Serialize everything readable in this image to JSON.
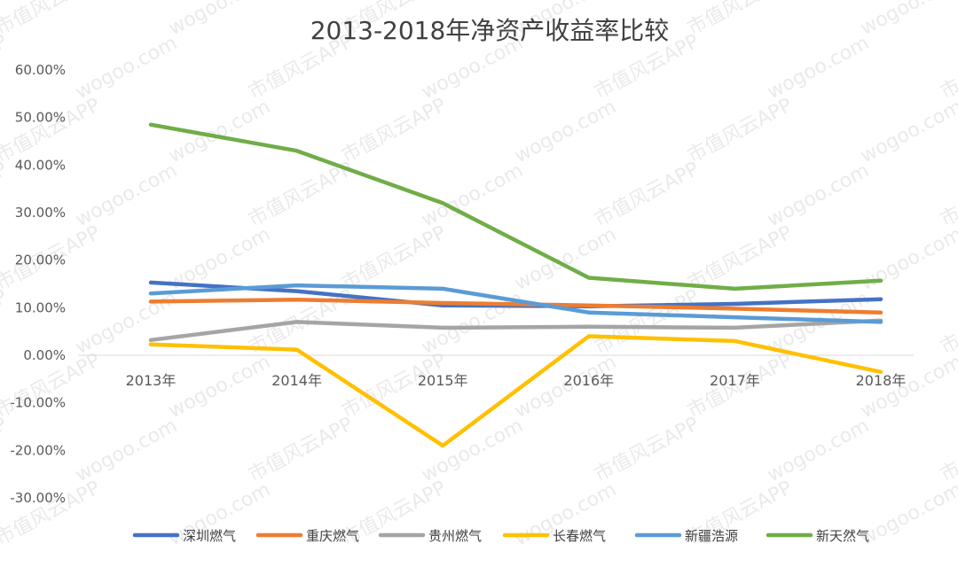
{
  "chart_data": {
    "type": "line",
    "title": "2013-2018年净资产收益率比较",
    "categories": [
      "2013年",
      "2014年",
      "2015年",
      "2016年",
      "2017年",
      "2018年"
    ],
    "ylim": [
      -30,
      60
    ],
    "yticks": [
      "60.00%",
      "50.00%",
      "40.00%",
      "30.00%",
      "20.00%",
      "10.00%",
      "0.00%",
      "-10.00%",
      "-20.00%",
      "-30.00%"
    ],
    "y_unit": "%",
    "grid": false,
    "legend_position": "bottom",
    "series": [
      {
        "name": "深圳燃气",
        "color": "#4472C4",
        "values": [
          15.3,
          13.5,
          10.5,
          10.3,
          10.8,
          11.8
        ]
      },
      {
        "name": "重庆燃气",
        "color": "#ED7D31",
        "values": [
          11.3,
          11.7,
          11.0,
          10.5,
          9.8,
          9.0
        ]
      },
      {
        "name": "贵州燃气",
        "color": "#A5A5A5",
        "values": [
          3.2,
          7.0,
          5.8,
          6.0,
          5.8,
          7.3
        ]
      },
      {
        "name": "长春燃气",
        "color": "#FFC000",
        "values": [
          2.3,
          1.2,
          -19.0,
          4.0,
          3.0,
          -3.5
        ]
      },
      {
        "name": "新疆浩源",
        "color": "#5B9BD5",
        "values": [
          13.0,
          14.7,
          14.0,
          9.0,
          8.0,
          7.0
        ]
      },
      {
        "name": "新天然气",
        "color": "#70AD47",
        "values": [
          48.5,
          43.0,
          32.0,
          16.3,
          14.0,
          15.7
        ]
      }
    ]
  },
  "watermark": {
    "texts": [
      "wogoo.com",
      "市值风云APP"
    ]
  }
}
